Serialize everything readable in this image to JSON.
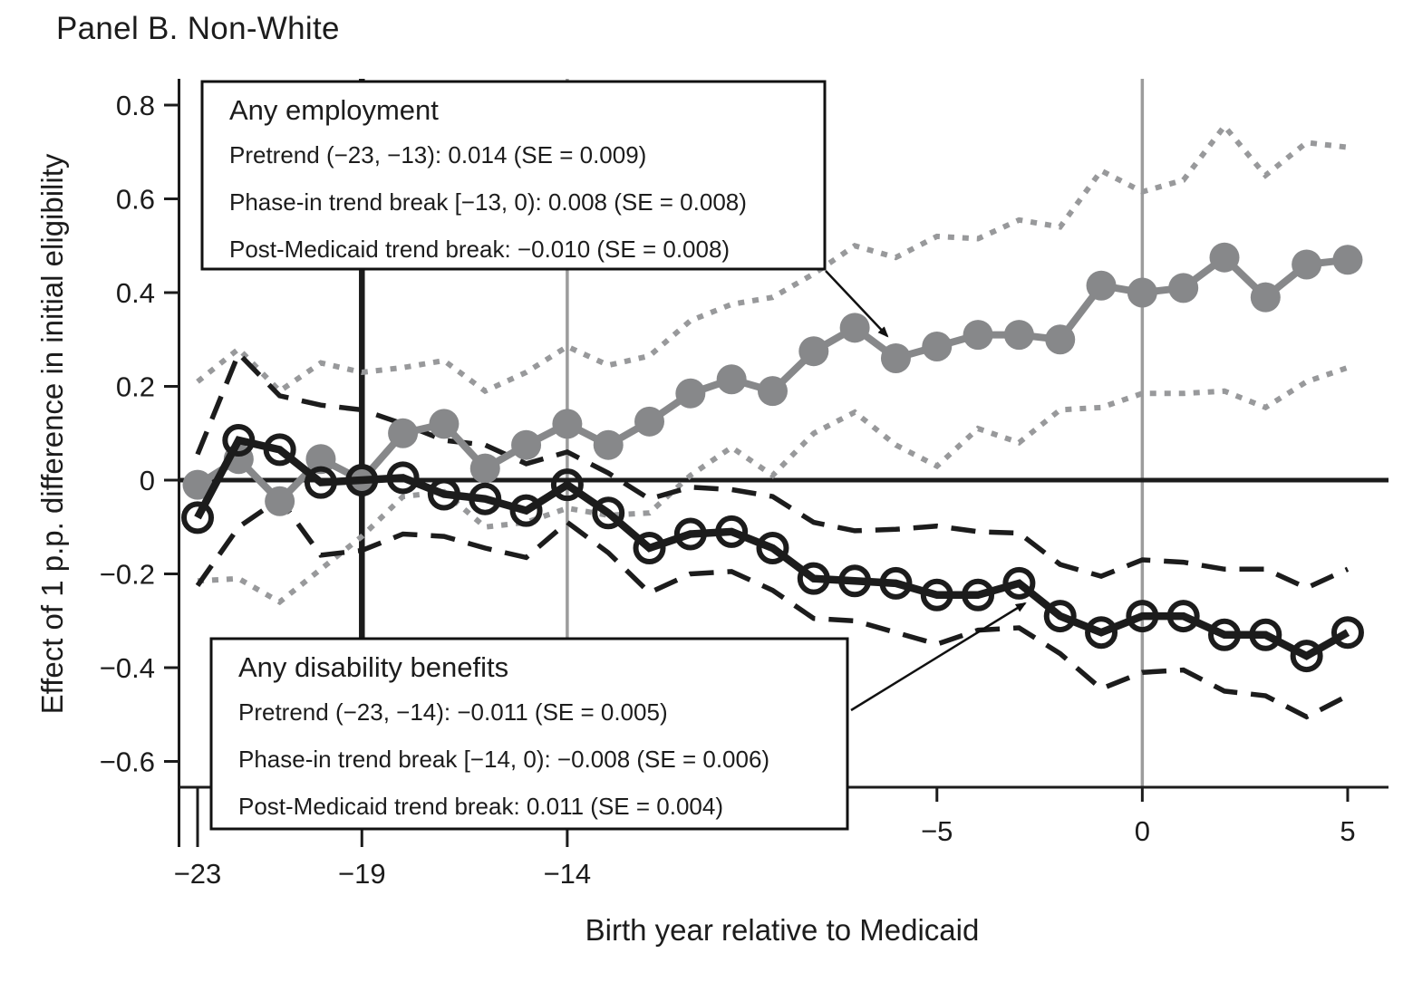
{
  "title": "Panel B. Non-White",
  "annotations": {
    "employment": {
      "title": "Any employment",
      "lines": [
        "Pretrend (−23, −13): 0.014 (SE = 0.009)",
        "Phase-in trend break [−13, 0): 0.008 (SE = 0.008)",
        "Post-Medicaid trend break: −0.010 (SE = 0.008)"
      ],
      "points_to": "Any employment series"
    },
    "disability": {
      "title": "Any disability benefits",
      "lines": [
        "Pretrend (−23, −14): −0.011 (SE = 0.005)",
        "Phase-in trend break [−14, 0): −0.008 (SE = 0.006)",
        "Post-Medicaid trend break: 0.011 (SE = 0.004)"
      ],
      "points_to": "Any disability benefits series"
    }
  },
  "chart_data": {
    "type": "line",
    "title": "Panel B. Non-White",
    "xlabel": "Birth year relative to Medicaid",
    "ylabel": "Effect of 1 p.p. difference in initial eligibility",
    "xlim": [
      -23.5,
      6
    ],
    "ylim": [
      -0.66,
      0.86
    ],
    "grid": false,
    "x_tick_values": [
      -23,
      -19,
      -14,
      -5,
      0,
      5
    ],
    "x_tick_labels": [
      "−23",
      "−19",
      "−14",
      "−5",
      "0",
      "5"
    ],
    "y_tick_values": [
      0.8,
      0.6,
      0.4,
      0.2,
      0,
      -0.2,
      -0.4,
      -0.6
    ],
    "y_tick_labels": [
      "0.8",
      "0.6",
      "0.4",
      "0.2",
      "0",
      "−0.2",
      "−0.4",
      "−0.6"
    ],
    "x": [
      -23,
      -22,
      -21,
      -20,
      -19,
      -18,
      -17,
      -16,
      -15,
      -14,
      -13,
      -12,
      -11,
      -10,
      -9,
      -8,
      -7,
      -6,
      -5,
      -4,
      -3,
      -2,
      -1,
      0,
      1,
      2,
      3,
      4,
      5
    ],
    "series": [
      {
        "name": "Any employment",
        "style": "solid",
        "marker": "filled-circle",
        "color": "#87888a",
        "values": [
          -0.01,
          0.045,
          -0.045,
          0.045,
          0,
          0.1,
          0.12,
          0.025,
          0.075,
          0.12,
          0.075,
          0.125,
          0.185,
          0.215,
          0.19,
          0.275,
          0.325,
          0.26,
          0.285,
          0.31,
          0.31,
          0.3,
          0.415,
          0.4,
          0.41,
          0.475,
          0.39,
          0.46,
          0.47
        ]
      },
      {
        "name": "Any employment CI upper",
        "style": "dotted",
        "marker": "none",
        "color": "#98999b",
        "values": [
          0.21,
          0.28,
          0.19,
          0.25,
          0.23,
          0.24,
          0.255,
          0.19,
          0.23,
          0.285,
          0.245,
          0.265,
          0.34,
          0.375,
          0.39,
          0.44,
          0.5,
          0.475,
          0.52,
          0.515,
          0.555,
          0.54,
          0.66,
          0.615,
          0.64,
          0.755,
          0.65,
          0.72,
          0.71
        ]
      },
      {
        "name": "Any employment CI lower",
        "style": "dotted",
        "marker": "none",
        "color": "#98999b",
        "values": [
          -0.215,
          -0.21,
          -0.26,
          -0.19,
          -0.12,
          -0.035,
          -0.025,
          -0.1,
          -0.09,
          -0.06,
          -0.075,
          -0.07,
          0.01,
          0.07,
          0.01,
          0.1,
          0.145,
          0.075,
          0.03,
          0.11,
          0.08,
          0.15,
          0.155,
          0.185,
          0.185,
          0.19,
          0.155,
          0.21,
          0.24
        ]
      },
      {
        "name": "Any disability benefits",
        "style": "solid",
        "marker": "open-circle",
        "color": "#1c1c1c",
        "values": [
          -0.08,
          0.085,
          0.065,
          -0.005,
          0,
          0.005,
          -0.03,
          -0.04,
          -0.065,
          -0.01,
          -0.07,
          -0.145,
          -0.115,
          -0.11,
          -0.145,
          -0.21,
          -0.215,
          -0.22,
          -0.245,
          -0.245,
          -0.22,
          -0.29,
          -0.325,
          -0.29,
          -0.29,
          -0.33,
          -0.33,
          -0.375,
          -0.325
        ]
      },
      {
        "name": "Any disability benefits CI upper",
        "style": "dashed",
        "marker": "none",
        "color": "#1c1c1c",
        "values": [
          0.055,
          0.27,
          0.18,
          0.16,
          0.15,
          0.12,
          0.085,
          0.075,
          0.035,
          0.06,
          0.015,
          -0.04,
          -0.015,
          -0.02,
          -0.035,
          -0.09,
          -0.108,
          -0.105,
          -0.098,
          -0.11,
          -0.113,
          -0.18,
          -0.205,
          -0.17,
          -0.175,
          -0.19,
          -0.19,
          -0.23,
          -0.19
        ]
      },
      {
        "name": "Any disability benefits CI lower",
        "style": "dashed",
        "marker": "none",
        "color": "#1c1c1c",
        "values": [
          -0.225,
          -0.1,
          -0.04,
          -0.16,
          -0.15,
          -0.115,
          -0.12,
          -0.145,
          -0.165,
          -0.09,
          -0.155,
          -0.24,
          -0.2,
          -0.195,
          -0.235,
          -0.295,
          -0.3,
          -0.325,
          -0.35,
          -0.32,
          -0.315,
          -0.37,
          -0.445,
          -0.41,
          -0.405,
          -0.45,
          -0.46,
          -0.505,
          -0.46
        ]
      }
    ],
    "reference_lines": {
      "vertical": [
        {
          "x": -19,
          "color": "#1c1c1c",
          "width": 6.5
        },
        {
          "x": -14,
          "color": "#9c9c9c",
          "width": 3.5
        },
        {
          "x": 0,
          "color": "#9c9c9c",
          "width": 3.5
        }
      ],
      "horizontal": [
        {
          "y": 0,
          "color": "#1c1c1c",
          "width": 5
        }
      ]
    },
    "colors": {
      "employment": "#87888a",
      "employment_ci": "#98999b",
      "disability": "#1c1c1c",
      "axis": "#1c1c1c"
    }
  }
}
